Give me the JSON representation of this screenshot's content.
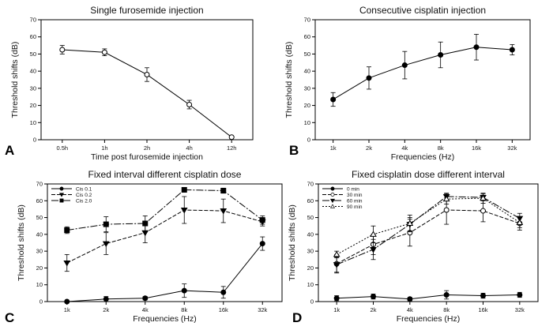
{
  "chart_data": [
    {
      "panel": "A",
      "type": "line",
      "title": "Single furosemide injection",
      "xlabel": "Time post furosemide injection",
      "ylabel": "Threshold shifts (dB)",
      "categories": [
        "0.5h",
        "1h",
        "2h",
        "4h",
        "12h"
      ],
      "ylim": [
        0,
        70
      ],
      "yticks": [
        0,
        10,
        20,
        30,
        40,
        50,
        60,
        70
      ],
      "series": [
        {
          "name": "",
          "marker": "open-circle",
          "values": [
            52.5,
            51,
            38,
            20.5,
            1.5
          ],
          "errors": [
            2.5,
            2,
            4,
            2.5,
            0.5
          ]
        }
      ]
    },
    {
      "panel": "B",
      "type": "line",
      "title": "Consecutive cisplatin injection",
      "xlabel": "Frequencies (Hz)",
      "ylabel": "Threshold shifts (dB)",
      "categories": [
        "1k",
        "2k",
        "4k",
        "8k",
        "16k",
        "32k"
      ],
      "ylim": [
        0,
        70
      ],
      "yticks": [
        0,
        10,
        20,
        30,
        40,
        50,
        60,
        70
      ],
      "series": [
        {
          "name": "",
          "marker": "filled-circle",
          "values": [
            23.5,
            36,
            43.5,
            49.5,
            54,
            52.5
          ],
          "errors": [
            4,
            6.5,
            8,
            7.5,
            7.5,
            3
          ]
        }
      ]
    },
    {
      "panel": "C",
      "type": "line",
      "title": "Fixed interval different cisplatin dose",
      "xlabel": "Frequencies (Hz)",
      "ylabel": "Threshold shifts (dB)",
      "categories": [
        "1k",
        "2k",
        "4k",
        "8k",
        "16k",
        "32k"
      ],
      "ylim": [
        0,
        70
      ],
      "yticks": [
        0,
        10,
        20,
        30,
        40,
        50,
        60,
        70
      ],
      "legend_position": "top-left",
      "series": [
        {
          "name": "Cis 0.1",
          "marker": "filled-circle",
          "dash": "",
          "values": [
            0,
            1.5,
            2,
            6.5,
            5.5,
            34.5
          ],
          "errors": [
            0.5,
            1.5,
            1,
            4,
            3.5,
            4
          ]
        },
        {
          "name": "Cis 0.2",
          "marker": "filled-triangle-down",
          "dash": "5,2",
          "values": [
            23,
            34.5,
            41,
            54.5,
            54,
            47.5
          ],
          "errors": [
            5,
            6.5,
            6,
            8,
            7,
            2.5
          ]
        },
        {
          "name": "Cis 2.0",
          "marker": "filled-square",
          "dash": "9,2,2,2",
          "values": [
            42.5,
            46,
            46.5,
            66.5,
            66,
            48.5
          ],
          "errors": [
            2,
            4.5,
            4.5,
            1,
            1.5,
            2.5
          ]
        }
      ]
    },
    {
      "panel": "D",
      "type": "line",
      "title": "Fixed cisplatin dose different interval",
      "xlabel": "Frequencies (Hz)",
      "ylabel": "Threshold shifts (dB)",
      "categories": [
        "1k",
        "2k",
        "4k",
        "8k",
        "16k",
        "32k"
      ],
      "ylim": [
        0,
        70
      ],
      "yticks": [
        0,
        10,
        20,
        30,
        40,
        50,
        60,
        70
      ],
      "legend_position": "top-left",
      "series": [
        {
          "name": "0 min",
          "marker": "filled-circle",
          "dash": "",
          "values": [
            2,
            3,
            1.5,
            4,
            3.5,
            4
          ],
          "errors": [
            1.5,
            1.5,
            1,
            2.5,
            1.5,
            1.5
          ]
        },
        {
          "name": "30 min",
          "marker": "open-circle",
          "dash": "5,2",
          "values": [
            22.5,
            34,
            41,
            54.5,
            54,
            46.5
          ],
          "errors": [
            5.5,
            6,
            8,
            8.5,
            6.5,
            4
          ]
        },
        {
          "name": "60 min",
          "marker": "filled-triangle-down",
          "dash": "9,2,2,2",
          "values": [
            22,
            31,
            46,
            62.5,
            62,
            49.5
          ],
          "errors": [
            4.5,
            6,
            4,
            2,
            2,
            3
          ]
        },
        {
          "name": "90 min",
          "marker": "open-triangle-up",
          "dash": "2,2",
          "values": [
            28,
            40,
            46.5,
            61,
            61.5,
            47
          ],
          "errors": [
            2,
            5,
            5,
            3,
            3,
            3
          ]
        }
      ]
    }
  ]
}
